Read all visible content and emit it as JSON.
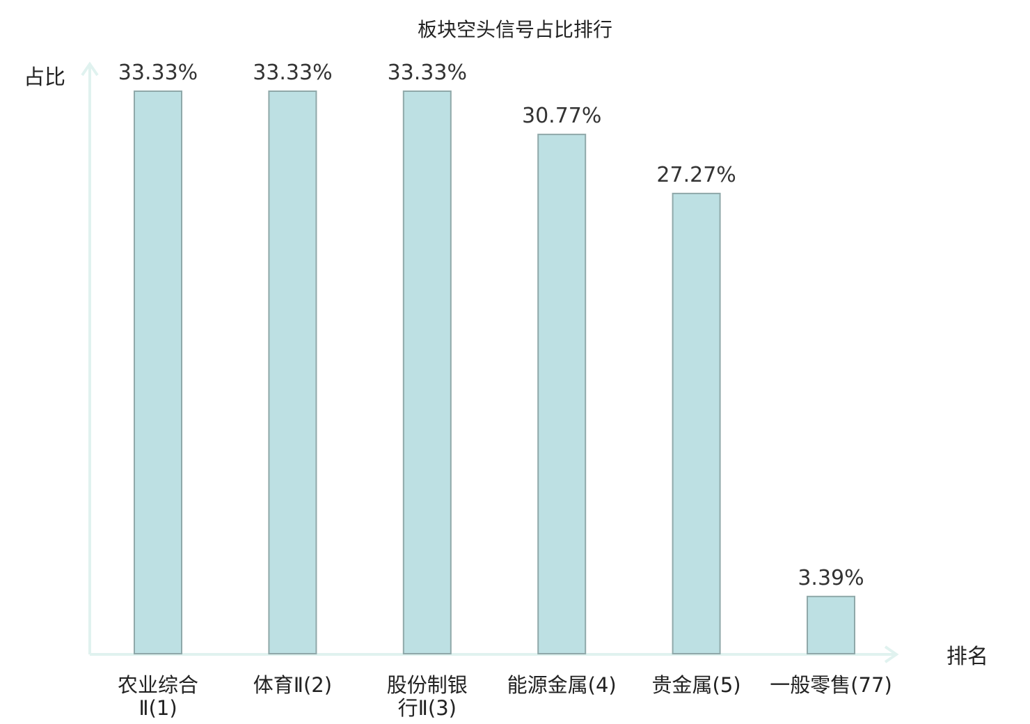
{
  "chart_data": {
    "type": "bar",
    "title": "板块空头信号占比排行",
    "ylabel": "占比",
    "xlabel": "排名",
    "ylim": [
      0,
      35
    ],
    "grid": false,
    "categories": [
      [
        "农业综合",
        "Ⅱ(1)"
      ],
      [
        "体育Ⅱ(2)"
      ],
      [
        "股份制银",
        "行Ⅱ(3)"
      ],
      [
        "能源金属(4)"
      ],
      [
        "贵金属(5)"
      ],
      [
        "一般零售(77)"
      ]
    ],
    "values": [
      33.33,
      33.33,
      33.33,
      30.77,
      27.27,
      3.39
    ],
    "value_labels": [
      "33.33%",
      "33.33%",
      "33.33%",
      "30.77%",
      "27.27%",
      "3.39%"
    ],
    "highlight_index": 5,
    "colors": {
      "bar_fill": "#bde0e3",
      "bar_stroke": "#8fa8a9",
      "axis": "#e0f2ef",
      "text": "#222222",
      "value_text": "#333333",
      "highlight_text": "#e02020"
    }
  }
}
